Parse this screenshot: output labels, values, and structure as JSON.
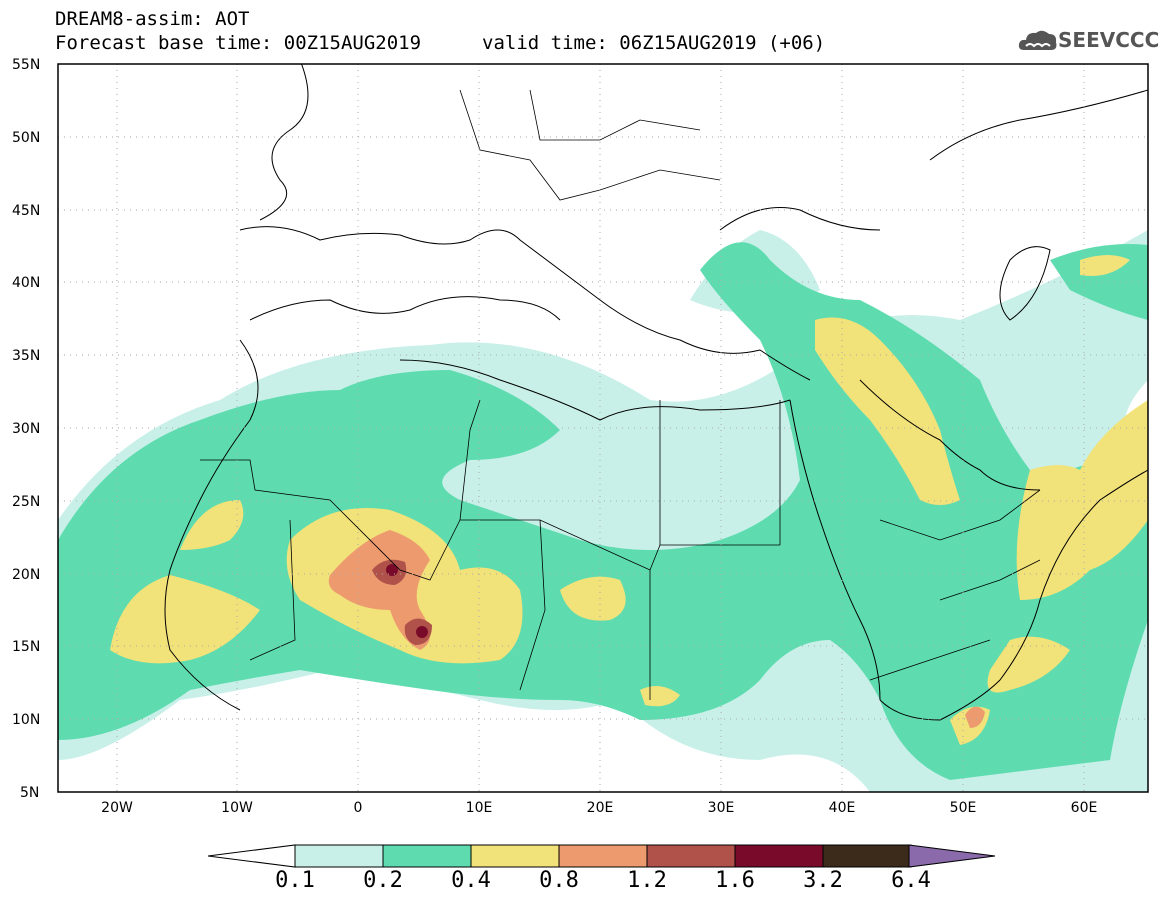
{
  "header": {
    "title": "DREAM8-assim: AOT",
    "base_time": "Forecast base time: 00Z15AUG2019",
    "valid_time": "valid time: 06Z15AUG2019 (+06)",
    "logo_text": "SEEVCCC"
  },
  "map": {
    "lon_range": [
      -25,
      65
    ],
    "lat_range": [
      5,
      55
    ],
    "lat_labels": [
      "55N",
      "50N",
      "45N",
      "40N",
      "35N",
      "30N",
      "25N",
      "20N",
      "15N",
      "10N",
      "5N"
    ],
    "lon_labels": [
      "20W",
      "10W",
      "0",
      "10E",
      "20E",
      "30E",
      "40E",
      "50E",
      "60E"
    ],
    "grid": "dotted",
    "land_color": "#ffffff",
    "border_color": "#000000"
  },
  "colorbar": {
    "thresholds": [
      "0.1",
      "0.2",
      "0.4",
      "0.8",
      "1.2",
      "1.6",
      "3.2",
      "6.4"
    ],
    "colors": [
      "#c8f0e8",
      "#5edcb0",
      "#f2e27a",
      "#ec9a6e",
      "#b0524a",
      "#7a0a2a",
      "#3c2a1a",
      "#8a6aaa"
    ],
    "extend": "both"
  }
}
